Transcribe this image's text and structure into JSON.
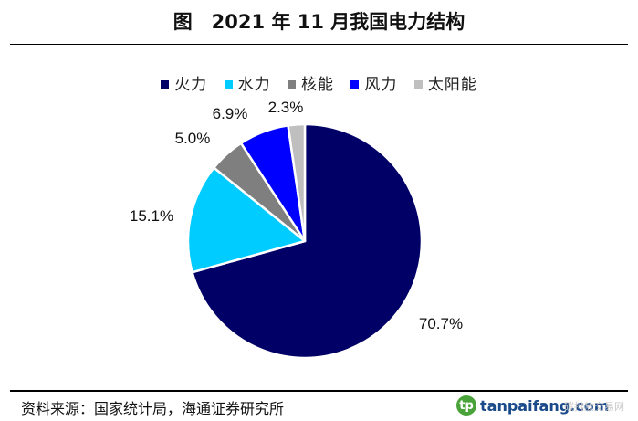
{
  "chart_data": {
    "type": "pie",
    "title": "图　2021 年 11 月我国电力结构",
    "series": [
      {
        "name": "火力",
        "value": 70.7,
        "label": "70.7%",
        "color": "#000066"
      },
      {
        "name": "水力",
        "value": 15.1,
        "label": "15.1%",
        "color": "#00ccff"
      },
      {
        "name": "核能",
        "value": 5.0,
        "label": "5.0%",
        "color": "#7f7f7f"
      },
      {
        "name": "风力",
        "value": 6.9,
        "label": "6.9%",
        "color": "#0000ff"
      },
      {
        "name": "太阳能",
        "value": 2.3,
        "label": "2.3%",
        "color": "#bfbfbf"
      }
    ],
    "legend_position": "top"
  },
  "footer": {
    "source": "资料来源：国家统计局，海通证券研究所",
    "brand": "tanpaifang.com",
    "brand_logo": "tp",
    "watermark": "碳排放交易网"
  }
}
